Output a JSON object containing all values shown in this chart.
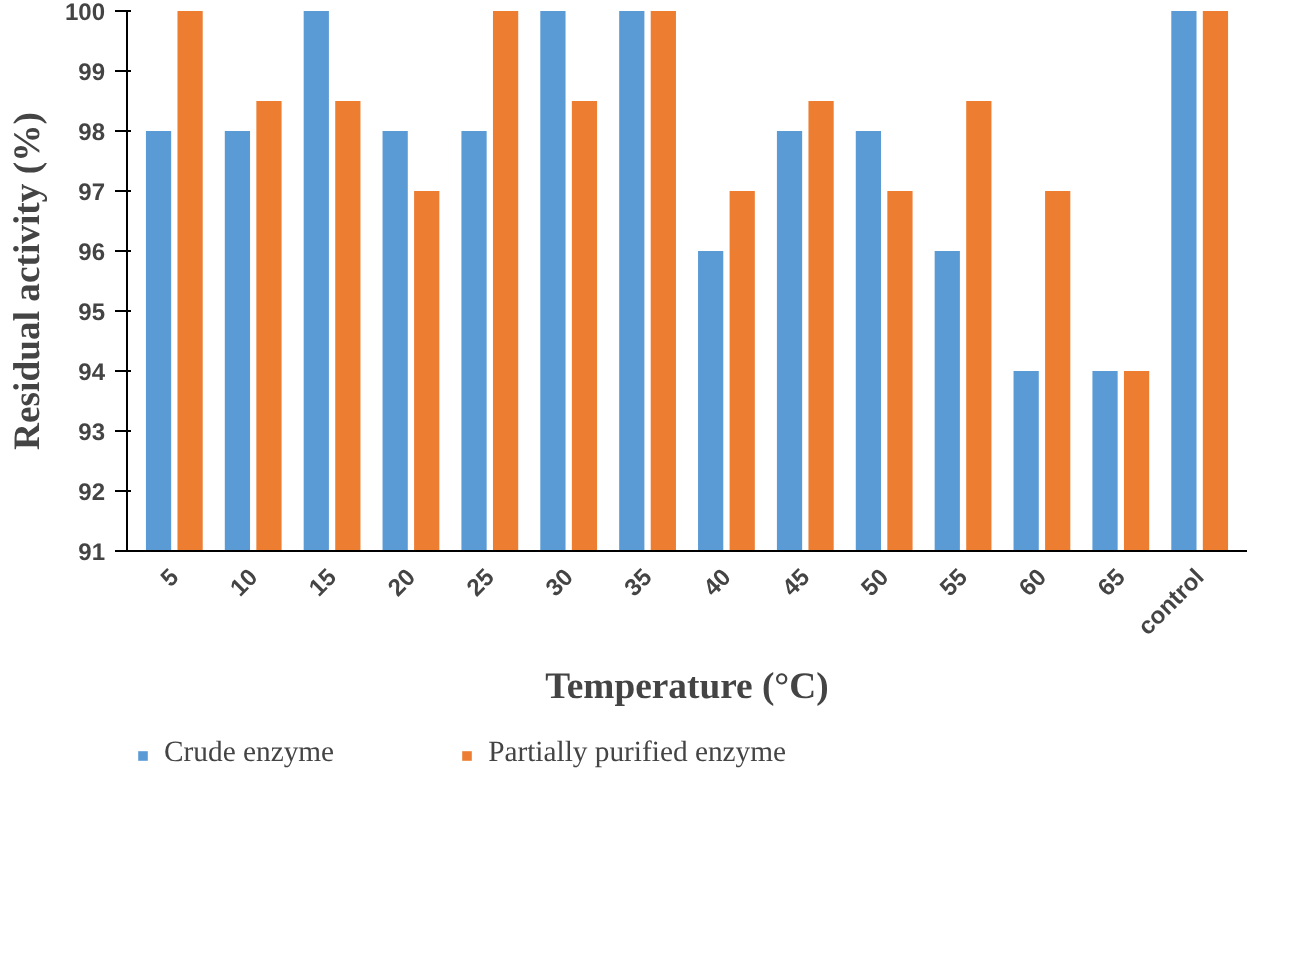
{
  "chart_data": {
    "type": "bar",
    "xlabel": "Temperature (°C)",
    "ylabel": "Residual activity (%)",
    "categories": [
      "5",
      "10",
      "15",
      "20",
      "25",
      "30",
      "35",
      "40",
      "45",
      "50",
      "55",
      "60",
      "65",
      "control"
    ],
    "series": [
      {
        "name": "Crude enzyme",
        "color": "#5b9bd5",
        "values": [
          98,
          98,
          100,
          98,
          98,
          100,
          100,
          96,
          98,
          98,
          96,
          94,
          94,
          100
        ]
      },
      {
        "name": "Partially purified enzyme",
        "color": "#ed7d31",
        "values": [
          100,
          98.5,
          98.5,
          97,
          100,
          98.5,
          100,
          97,
          98.5,
          97,
          98.5,
          97,
          94,
          100
        ]
      }
    ],
    "ylim": [
      91,
      100
    ],
    "yticks": [
      91,
      92,
      93,
      94,
      95,
      96,
      97,
      98,
      99,
      100
    ],
    "grid": false,
    "legend": "bottom"
  }
}
